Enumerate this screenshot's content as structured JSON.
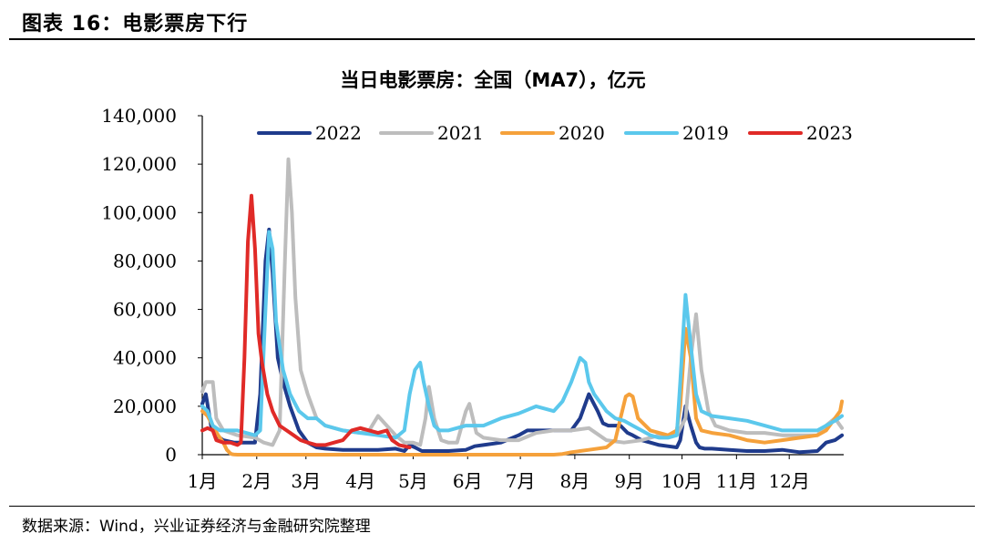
{
  "figure": {
    "title": "图表 16：电影票房下行",
    "source": "数据来源：Wind，兴业证券经济与金融研究院整理"
  },
  "chart_data": {
    "type": "line",
    "title": "当日电影票房：全国（MA7），亿元",
    "xlabel": "",
    "ylabel": "",
    "ylim": [
      0,
      140000
    ],
    "yticks": [
      0,
      20000,
      40000,
      60000,
      80000,
      100000,
      120000,
      140000
    ],
    "ytick_labels": [
      "0",
      "20,000",
      "40,000",
      "60,000",
      "80,000",
      "100,000",
      "120,000",
      "140,000"
    ],
    "xlim": [
      0,
      365
    ],
    "xticks": [
      0,
      31,
      59,
      90,
      120,
      151,
      181,
      212,
      243,
      273,
      304,
      334
    ],
    "xtick_labels": [
      "1月",
      "2月",
      "3月",
      "4月",
      "5月",
      "6月",
      "7月",
      "8月",
      "9月",
      "10月",
      "11月",
      "12月"
    ],
    "legend_position": "top",
    "grid": false,
    "series": [
      {
        "name": "2022",
        "color": "#1f3b8c",
        "x": [
          0,
          2,
          5,
          8,
          12,
          18,
          25,
          30,
          33,
          36,
          38,
          40,
          43,
          46,
          50,
          55,
          60,
          65,
          70,
          80,
          90,
          100,
          110,
          115,
          118,
          121,
          125,
          130,
          140,
          150,
          155,
          160,
          170,
          180,
          185,
          190,
          200,
          210,
          215,
          220,
          225,
          228,
          231,
          234,
          238,
          242,
          245,
          250,
          255,
          260,
          265,
          270,
          272,
          275,
          278,
          281,
          283,
          286,
          290,
          300,
          310,
          320,
          330,
          340,
          350,
          355,
          360,
          364
        ],
        "y": [
          21000,
          25000,
          12000,
          8000,
          6000,
          5000,
          5000,
          5000,
          25000,
          80000,
          93000,
          75000,
          40000,
          30000,
          20000,
          10000,
          5000,
          3000,
          2500,
          2000,
          2000,
          2000,
          2500,
          1500,
          4000,
          3000,
          1500,
          1500,
          1500,
          2000,
          3500,
          4000,
          5000,
          8000,
          10000,
          10000,
          10000,
          10000,
          15000,
          25000,
          18000,
          13000,
          12000,
          12000,
          12000,
          9000,
          8000,
          6000,
          5000,
          4000,
          3500,
          3000,
          6000,
          20000,
          12000,
          5000,
          3000,
          2500,
          2500,
          2000,
          1500,
          1500,
          2000,
          1000,
          1500,
          5000,
          6000,
          8000
        ]
      },
      {
        "name": "2021",
        "color": "#bdbdbd",
        "x": [
          0,
          2,
          6,
          8,
          12,
          20,
          30,
          35,
          40,
          44,
          47,
          49,
          51,
          53,
          56,
          60,
          65,
          70,
          80,
          90,
          95,
          100,
          105,
          110,
          115,
          120,
          124,
          127,
          129,
          132,
          136,
          140,
          145,
          150,
          152,
          154,
          156,
          160,
          170,
          180,
          190,
          200,
          210,
          220,
          230,
          240,
          250,
          260,
          270,
          275,
          278,
          281,
          284,
          288,
          292,
          300,
          310,
          320,
          330,
          340,
          350,
          355,
          360,
          364
        ],
        "y": [
          26000,
          30000,
          30000,
          15000,
          10000,
          8000,
          7000,
          5000,
          4000,
          10000,
          80000,
          122000,
          100000,
          65000,
          35000,
          25000,
          15000,
          12000,
          10000,
          9000,
          10000,
          16000,
          12000,
          8000,
          5000,
          5000,
          4000,
          15000,
          28000,
          15000,
          6000,
          5000,
          5000,
          18000,
          21000,
          15000,
          9000,
          7000,
          6000,
          6000,
          9000,
          10000,
          10000,
          11000,
          6000,
          5000,
          6000,
          8000,
          8000,
          15000,
          40000,
          58000,
          35000,
          18000,
          12000,
          10000,
          9000,
          9000,
          8000,
          8000,
          8000,
          12000,
          15000,
          11000
        ]
      },
      {
        "name": "2020",
        "color": "#f5a13b",
        "x": [
          0,
          3,
          6,
          9,
          12,
          14,
          16,
          17,
          18,
          20,
          40,
          80,
          120,
          160,
          200,
          205,
          210,
          215,
          220,
          230,
          235,
          238,
          241,
          243,
          245,
          248,
          255,
          265,
          270,
          272,
          275,
          278,
          281,
          284,
          290,
          300,
          310,
          320,
          330,
          340,
          350,
          355,
          360,
          363,
          364
        ],
        "y": [
          18000,
          16000,
          12000,
          8000,
          5000,
          2000,
          500,
          200,
          100,
          0,
          0,
          0,
          0,
          0,
          0,
          300,
          1000,
          1500,
          2000,
          3000,
          6000,
          15000,
          24000,
          25000,
          24000,
          15000,
          10000,
          8000,
          10000,
          20000,
          52000,
          40000,
          15000,
          10000,
          9000,
          8000,
          6000,
          5000,
          6000,
          7000,
          8000,
          10000,
          15000,
          18000,
          22000
        ]
      },
      {
        "name": "2019",
        "color": "#5bc8ec",
        "x": [
          0,
          3,
          6,
          10,
          15,
          20,
          25,
          30,
          33,
          36,
          38,
          40,
          42,
          46,
          50,
          55,
          60,
          65,
          70,
          80,
          90,
          100,
          110,
          115,
          118,
          121,
          124,
          126,
          129,
          132,
          135,
          140,
          150,
          160,
          170,
          180,
          190,
          200,
          205,
          210,
          215,
          218,
          220,
          223,
          226,
          230,
          235,
          240,
          245,
          250,
          255,
          260,
          265,
          270,
          272,
          275,
          278,
          281,
          284,
          290,
          300,
          310,
          320,
          330,
          340,
          350,
          355,
          360,
          364
        ],
        "y": [
          20000,
          18000,
          12000,
          10000,
          10000,
          10000,
          9000,
          8000,
          10000,
          60000,
          92000,
          85000,
          55000,
          35000,
          25000,
          18000,
          15000,
          15000,
          12000,
          10000,
          9000,
          8000,
          7000,
          10000,
          25000,
          35000,
          38000,
          30000,
          20000,
          12000,
          10000,
          10000,
          12000,
          12000,
          15000,
          17000,
          20000,
          18000,
          22000,
          30000,
          40000,
          38000,
          30000,
          25000,
          22000,
          18000,
          15000,
          14000,
          12000,
          10000,
          8000,
          7000,
          7000,
          8000,
          30000,
          66000,
          45000,
          25000,
          18000,
          16000,
          15000,
          14000,
          12000,
          10000,
          10000,
          10000,
          12000,
          14000,
          16000
        ]
      },
      {
        "name": "2023",
        "color": "#e02a27",
        "x": [
          0,
          3,
          6,
          8,
          12,
          16,
          20,
          22,
          24,
          26,
          28,
          30,
          32,
          34,
          37,
          40,
          44,
          48,
          52,
          56,
          60,
          65,
          70,
          75,
          80,
          85,
          90,
          95,
          100,
          105,
          108,
          110,
          112,
          115,
          118
        ],
        "y": [
          10000,
          11000,
          10000,
          6000,
          5000,
          5000,
          4000,
          5000,
          40000,
          88000,
          107000,
          85000,
          50000,
          38000,
          25000,
          18000,
          12000,
          10000,
          8000,
          6000,
          5000,
          4000,
          4000,
          5000,
          6000,
          10000,
          11000,
          10000,
          9000,
          10000,
          6000,
          5000,
          4000,
          3500,
          3000
        ]
      }
    ]
  }
}
